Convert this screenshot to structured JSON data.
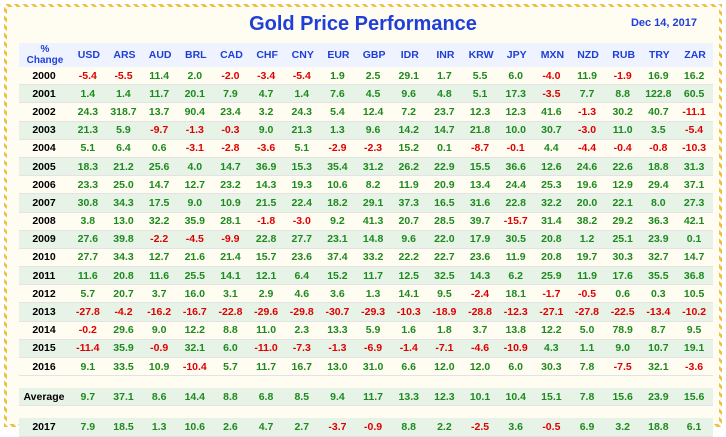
{
  "header": {
    "title": "Gold Price Performance",
    "date": "Dec 14, 2017"
  },
  "colors": {
    "title": "#1f3fd8",
    "positive": "#1e8a1e",
    "negative": "#e00000",
    "band": "#e6f3e6"
  },
  "table": {
    "corner_label": [
      "%",
      "Change"
    ],
    "currencies": [
      "USD",
      "ARS",
      "AUD",
      "BRL",
      "CAD",
      "CHF",
      "CNY",
      "EUR",
      "GBP",
      "IDR",
      "INR",
      "KRW",
      "JPY",
      "MXN",
      "NZD",
      "RUB",
      "TRY",
      "ZAR"
    ],
    "rows": [
      {
        "year": "2000",
        "values": [
          "-5.4",
          "-5.5",
          "11.4",
          "2.0",
          "-2.0",
          "-3.4",
          "-5.4",
          "1.9",
          "2.5",
          "29.1",
          "1.7",
          "5.5",
          "6.0",
          "-4.0",
          "11.9",
          "-1.9",
          "16.9",
          "16.2"
        ]
      },
      {
        "year": "2001",
        "values": [
          "1.4",
          "1.4",
          "11.7",
          "20.1",
          "7.9",
          "4.7",
          "1.4",
          "7.6",
          "4.5",
          "9.6",
          "4.8",
          "5.1",
          "17.3",
          "-3.5",
          "7.7",
          "8.8",
          "122.8",
          "60.5"
        ]
      },
      {
        "year": "2002",
        "values": [
          "24.3",
          "318.7",
          "13.7",
          "90.4",
          "23.4",
          "3.2",
          "24.3",
          "5.4",
          "12.4",
          "7.2",
          "23.7",
          "12.3",
          "12.3",
          "41.6",
          "-1.3",
          "30.2",
          "40.7",
          "-11.1"
        ]
      },
      {
        "year": "2003",
        "values": [
          "21.3",
          "5.9",
          "-9.7",
          "-1.3",
          "-0.3",
          "9.0",
          "21.3",
          "1.3",
          "9.6",
          "14.2",
          "14.7",
          "21.8",
          "10.0",
          "30.7",
          "-3.0",
          "11.0",
          "3.5",
          "-5.4"
        ]
      },
      {
        "year": "2004",
        "values": [
          "5.1",
          "6.4",
          "0.6",
          "-3.1",
          "-2.8",
          "-3.6",
          "5.1",
          "-2.9",
          "-2.3",
          "15.2",
          "0.1",
          "-8.7",
          "-0.1",
          "4.4",
          "-4.4",
          "-0.4",
          "-0.8",
          "-10.3"
        ]
      },
      {
        "year": "2005",
        "values": [
          "18.3",
          "21.2",
          "25.6",
          "4.0",
          "14.7",
          "36.9",
          "15.3",
          "35.4",
          "31.2",
          "26.2",
          "22.9",
          "15.5",
          "36.6",
          "12.6",
          "24.6",
          "22.6",
          "18.8",
          "31.3"
        ]
      },
      {
        "year": "2006",
        "values": [
          "23.3",
          "25.0",
          "14.7",
          "12.7",
          "23.2",
          "14.3",
          "19.3",
          "10.6",
          "8.2",
          "11.9",
          "20.9",
          "13.4",
          "24.4",
          "25.3",
          "19.6",
          "12.9",
          "29.4",
          "37.1"
        ]
      },
      {
        "year": "2007",
        "values": [
          "30.8",
          "34.3",
          "17.5",
          "9.0",
          "10.9",
          "21.5",
          "22.4",
          "18.2",
          "29.1",
          "37.3",
          "16.5",
          "31.6",
          "22.8",
          "32.2",
          "20.0",
          "22.1",
          "8.0",
          "27.3"
        ]
      },
      {
        "year": "2008",
        "values": [
          "3.8",
          "13.0",
          "32.2",
          "35.9",
          "28.1",
          "-1.8",
          "-3.0",
          "9.2",
          "41.3",
          "20.7",
          "28.5",
          "39.7",
          "-15.7",
          "31.4",
          "38.2",
          "29.2",
          "36.3",
          "42.1"
        ]
      },
      {
        "year": "2009",
        "values": [
          "27.6",
          "39.8",
          "-2.2",
          "-4.5",
          "-9.9",
          "22.8",
          "27.7",
          "23.1",
          "14.8",
          "9.6",
          "22.0",
          "17.9",
          "30.5",
          "20.8",
          "1.2",
          "25.1",
          "23.9",
          "0.1"
        ]
      },
      {
        "year": "2010",
        "values": [
          "27.7",
          "34.3",
          "12.7",
          "21.6",
          "21.4",
          "15.7",
          "23.6",
          "37.4",
          "33.2",
          "22.2",
          "22.7",
          "23.6",
          "11.9",
          "20.8",
          "19.7",
          "30.3",
          "32.7",
          "14.7"
        ]
      },
      {
        "year": "2011",
        "values": [
          "11.6",
          "20.8",
          "11.6",
          "25.5",
          "14.1",
          "12.1",
          "6.4",
          "15.2",
          "11.7",
          "12.5",
          "32.5",
          "14.3",
          "6.2",
          "25.9",
          "11.9",
          "17.6",
          "35.5",
          "36.8"
        ]
      },
      {
        "year": "2012",
        "values": [
          "5.7",
          "20.7",
          "3.7",
          "16.0",
          "3.1",
          "2.9",
          "4.6",
          "3.6",
          "1.3",
          "14.1",
          "9.5",
          "-2.4",
          "18.1",
          "-1.7",
          "-0.5",
          "0.6",
          "0.3",
          "10.5"
        ]
      },
      {
        "year": "2013",
        "values": [
          "-27.8",
          "-4.2",
          "-16.2",
          "-16.7",
          "-22.8",
          "-29.6",
          "-29.8",
          "-30.7",
          "-29.3",
          "-10.3",
          "-18.9",
          "-28.8",
          "-12.3",
          "-27.1",
          "-27.8",
          "-22.5",
          "-13.4",
          "-10.2"
        ]
      },
      {
        "year": "2014",
        "values": [
          "-0.2",
          "29.6",
          "9.0",
          "12.2",
          "8.8",
          "11.0",
          "2.3",
          "13.3",
          "5.9",
          "1.6",
          "1.8",
          "3.7",
          "13.8",
          "12.2",
          "5.0",
          "78.9",
          "8.7",
          "9.5"
        ]
      },
      {
        "year": "2015",
        "values": [
          "-11.4",
          "35.9",
          "-0.9",
          "32.1",
          "6.0",
          "-11.0",
          "-7.3",
          "-1.3",
          "-6.9",
          "-1.4",
          "-7.1",
          "-4.6",
          "-10.9",
          "4.3",
          "1.1",
          "9.0",
          "10.7",
          "19.1"
        ]
      },
      {
        "year": "2016",
        "values": [
          "9.1",
          "33.5",
          "10.9",
          "-10.4",
          "5.7",
          "11.7",
          "16.7",
          "13.0",
          "31.0",
          "6.6",
          "12.0",
          "12.0",
          "6.0",
          "30.3",
          "7.8",
          "-7.5",
          "32.1",
          "-3.6"
        ]
      }
    ],
    "average": {
      "year": "Average",
      "values": [
        "9.7",
        "37.1",
        "8.6",
        "14.4",
        "8.8",
        "6.8",
        "8.5",
        "9.4",
        "11.7",
        "13.3",
        "12.3",
        "10.1",
        "10.4",
        "15.1",
        "7.8",
        "15.6",
        "23.9",
        "15.6"
      ]
    },
    "current": {
      "year": "2017",
      "values": [
        "7.9",
        "18.5",
        "1.3",
        "10.6",
        "2.6",
        "4.7",
        "2.7",
        "-3.7",
        "-0.9",
        "8.8",
        "2.2",
        "-2.5",
        "3.6",
        "-0.5",
        "6.9",
        "3.2",
        "18.8",
        "6.1"
      ]
    }
  }
}
